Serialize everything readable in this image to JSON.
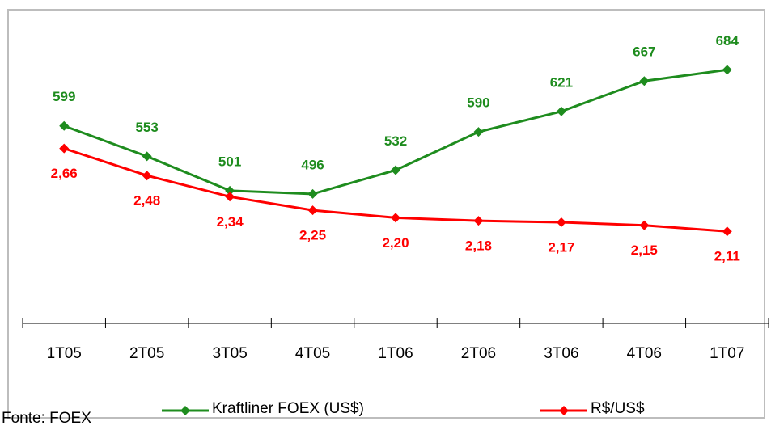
{
  "chart_data": {
    "type": "line",
    "source": "Fonte: FOEX",
    "categories": [
      "1T05",
      "2T05",
      "3T05",
      "4T05",
      "1T06",
      "2T06",
      "3T06",
      "4T06",
      "1T07"
    ],
    "series": [
      {
        "name": "Kraftliner FOEX (US$)",
        "color": "#1e8c1e",
        "values": [
          599,
          553,
          501,
          496,
          532,
          590,
          621,
          667,
          684
        ]
      },
      {
        "name": "R$/US$",
        "color": "#ff0000",
        "axis": "y2",
        "values": [
          2.66,
          2.48,
          2.34,
          2.25,
          2.2,
          2.18,
          2.17,
          2.15,
          2.11
        ],
        "value_labels": [
          "2,66",
          "2,48",
          "2,34",
          "2,25",
          "2,20",
          "2,18",
          "2,17",
          "2,15",
          "2,11"
        ]
      }
    ],
    "ylim": [
      300,
      775
    ],
    "y2lim": [
      1.5,
      3.58
    ]
  }
}
